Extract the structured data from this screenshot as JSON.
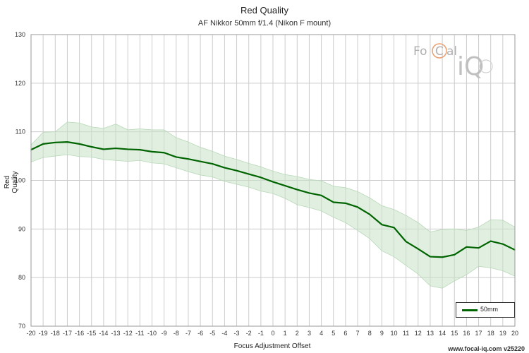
{
  "header": {
    "title": "Red Quality",
    "subtitle": "AF Nikkor 50mm f/1.4 (Nikon F mount)"
  },
  "footer": {
    "credit": "www.focal-iq.com  v25220"
  },
  "logo": {
    "text_fo": "Fo",
    "text_c": "C",
    "text_al": "al",
    "text_iq": "iQ"
  },
  "colors": {
    "line": "#006400",
    "band": "#c8e2c8",
    "grid": "#cccccc",
    "logo_accent": "#e8a070"
  },
  "chart_data": {
    "type": "line",
    "title": "Red Quality",
    "subtitle": "AF Nikkor 50mm f/1.4 (Nikon F mount)",
    "xlabel": "Focus Adjustment Offset",
    "ylabel": "Red Quality",
    "xlim": [
      -20,
      20
    ],
    "ylim": [
      70,
      130
    ],
    "x_ticks": [
      -20,
      -19,
      -18,
      -17,
      -16,
      -15,
      -14,
      -13,
      -12,
      -11,
      -10,
      -9,
      -8,
      -7,
      -6,
      -5,
      -4,
      -3,
      -2,
      -1,
      0,
      1,
      2,
      3,
      4,
      5,
      6,
      7,
      8,
      9,
      10,
      11,
      12,
      13,
      14,
      15,
      16,
      17,
      18,
      19,
      20
    ],
    "y_ticks": [
      70,
      80,
      90,
      100,
      110,
      120,
      130
    ],
    "grid": true,
    "legend_position": "bottom-right",
    "series": [
      {
        "name": "50mm",
        "x": [
          -20,
          -19,
          -18,
          -17,
          -16,
          -15,
          -14,
          -13,
          -12,
          -11,
          -10,
          -9,
          -8,
          -7,
          -6,
          -5,
          -4,
          -3,
          -2,
          -1,
          0,
          1,
          2,
          3,
          4,
          5,
          6,
          7,
          8,
          9,
          10,
          11,
          12,
          13,
          14,
          15,
          16,
          17,
          18,
          19,
          20
        ],
        "values": [
          106.3,
          107.5,
          107.8,
          107.9,
          107.5,
          106.9,
          106.4,
          106.6,
          106.4,
          106.3,
          105.9,
          105.7,
          104.8,
          104.4,
          103.9,
          103.4,
          102.6,
          102.0,
          101.3,
          100.6,
          99.7,
          98.9,
          98.1,
          97.4,
          96.9,
          95.5,
          95.3,
          94.5,
          93.0,
          90.9,
          90.3,
          87.4,
          85.9,
          84.3,
          84.2,
          84.7,
          86.3,
          86.1,
          87.5,
          86.9,
          85.7
        ],
        "band_upper": [
          107.3,
          109.9,
          110.0,
          112.0,
          111.8,
          111.0,
          110.7,
          111.6,
          110.4,
          110.6,
          110.4,
          110.4,
          108.8,
          107.9,
          106.8,
          106.0,
          105.0,
          104.3,
          103.5,
          102.8,
          101.9,
          101.2,
          100.8,
          100.2,
          99.9,
          98.8,
          98.5,
          97.7,
          96.4,
          94.8,
          94.0,
          92.8,
          91.3,
          89.4,
          89.9,
          90.0,
          89.7,
          90.4,
          91.9,
          91.8,
          90.4
        ],
        "band_lower": [
          103.8,
          104.7,
          105.0,
          105.3,
          104.9,
          104.8,
          104.3,
          104.1,
          103.9,
          104.1,
          103.6,
          103.4,
          102.6,
          101.8,
          101.1,
          100.7,
          99.8,
          99.2,
          98.6,
          97.8,
          97.3,
          96.3,
          95.0,
          94.4,
          93.7,
          92.4,
          91.3,
          89.7,
          88.0,
          85.5,
          84.3,
          82.5,
          80.7,
          78.3,
          77.8,
          79.3,
          80.6,
          82.3,
          82.0,
          81.4,
          80.3
        ]
      }
    ]
  }
}
